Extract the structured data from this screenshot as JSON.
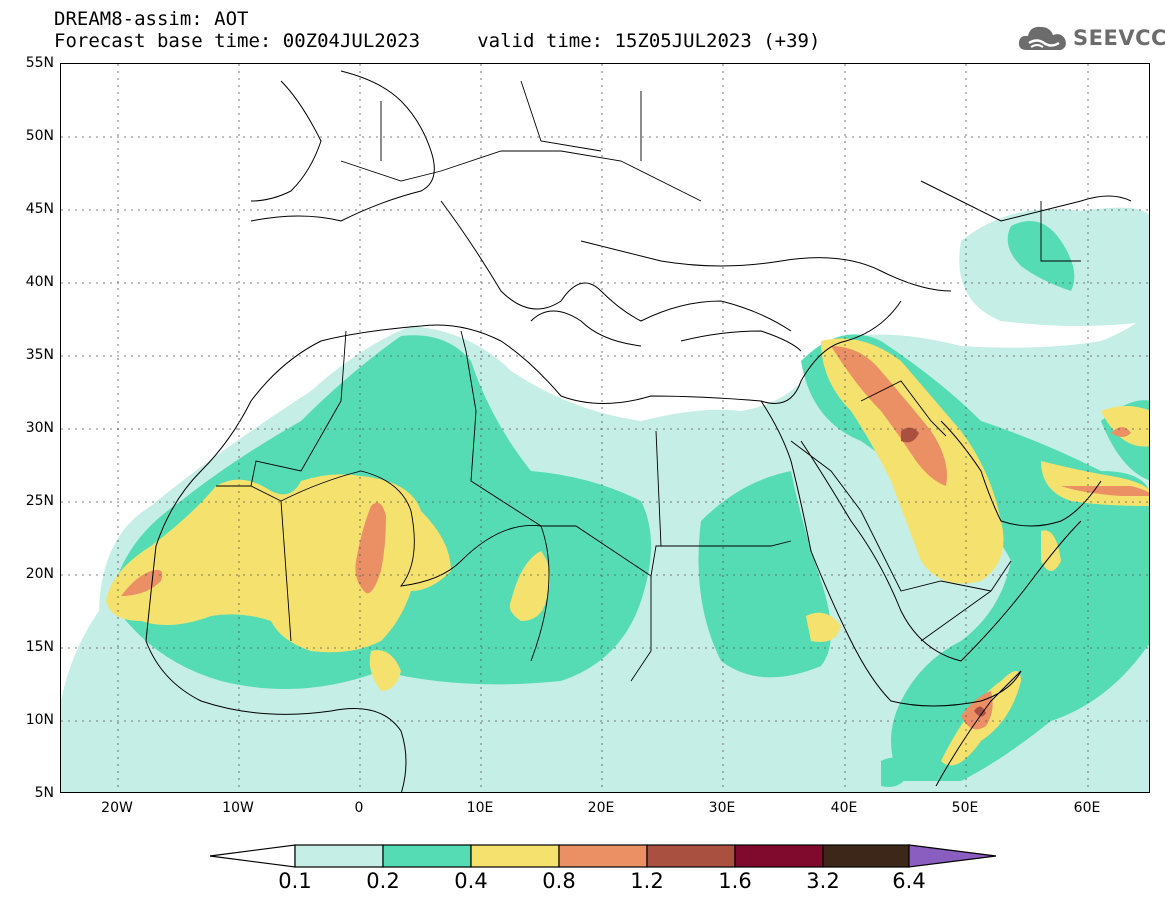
{
  "title": {
    "line1": "DREAM8-assim: AOT",
    "line2": "Forecast base time: 00Z04JUL2023     valid time: 15Z05JUL2023 (+39)"
  },
  "logo": {
    "text": "SEEVCCC",
    "icon": "cloud-icon",
    "color": "#6c6c6c"
  },
  "map": {
    "lat_labels": [
      "55N",
      "50N",
      "45N",
      "40N",
      "35N",
      "30N",
      "25N",
      "20N",
      "15N",
      "10N",
      "5N"
    ],
    "lon_labels": [
      "20W",
      "10W",
      "0",
      "10E",
      "20E",
      "30E",
      "40E",
      "50E",
      "60E"
    ],
    "grid": "dotted"
  },
  "colorbar": {
    "labels": [
      "0.1",
      "0.2",
      "0.4",
      "0.8",
      "1.2",
      "1.6",
      "3.2",
      "6.4"
    ],
    "colors": [
      "#ffffff",
      "#c5eee6",
      "#55dcb4",
      "#f5e26e",
      "#eb9065",
      "#a95040",
      "#80092e",
      "#3d2718",
      "#8a5ec0"
    ]
  }
}
